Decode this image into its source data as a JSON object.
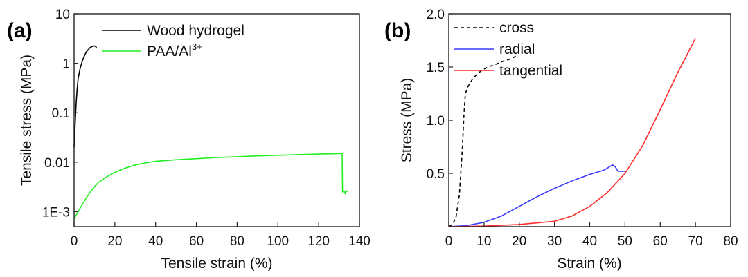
{
  "chart_data": [
    {
      "panel": "(a)",
      "type": "line",
      "xlabel": "Tensile strain (%)",
      "ylabel": "Tensile stress (MPa)",
      "xlim": [
        0,
        140
      ],
      "ylim": [
        0.0005,
        10
      ],
      "yscale": "log",
      "x_ticks": [
        0,
        20,
        40,
        60,
        80,
        100,
        120,
        140
      ],
      "y_ticks": [
        {
          "value": 10,
          "label": "10"
        },
        {
          "value": 1,
          "label": "1"
        },
        {
          "value": 0.1,
          "label": "0.1"
        },
        {
          "value": 0.01,
          "label": "0.01"
        },
        {
          "value": 0.001,
          "label": "1E-3"
        }
      ],
      "grid": false,
      "legend": "top-left",
      "series": [
        {
          "name": "Wood hydrogel",
          "color": "#000000",
          "points": [
            [
              0,
              0.02
            ],
            [
              0.5,
              0.06
            ],
            [
              1,
              0.15
            ],
            [
              1.5,
              0.3
            ],
            [
              2,
              0.5
            ],
            [
              3,
              0.8
            ],
            [
              4,
              1.1
            ],
            [
              5,
              1.4
            ],
            [
              6,
              1.7
            ],
            [
              7,
              1.9
            ],
            [
              8,
              2.1
            ],
            [
              9,
              2.2
            ],
            [
              10,
              2.25
            ],
            [
              10.8,
              2.15
            ],
            [
              11,
              2.0
            ]
          ]
        },
        {
          "name": "PAA/Al",
          "name_superscript": "3+",
          "color": "#22ee22",
          "points": [
            [
              0,
              0.0007
            ],
            [
              1,
              0.00085
            ],
            [
              2,
              0.001
            ],
            [
              4,
              0.0014
            ],
            [
              6,
              0.0019
            ],
            [
              8,
              0.0025
            ],
            [
              10,
              0.0032
            ],
            [
              12,
              0.0039
            ],
            [
              15,
              0.0048
            ],
            [
              20,
              0.0063
            ],
            [
              25,
              0.0076
            ],
            [
              30,
              0.0088
            ],
            [
              35,
              0.0097
            ],
            [
              40,
              0.0104
            ],
            [
              50,
              0.0112
            ],
            [
              60,
              0.0118
            ],
            [
              70,
              0.0124
            ],
            [
              80,
              0.0129
            ],
            [
              90,
              0.0134
            ],
            [
              100,
              0.0138
            ],
            [
              110,
              0.0142
            ],
            [
              120,
              0.0146
            ],
            [
              130,
              0.0149
            ],
            [
              131.5,
              0.015
            ],
            [
              131.7,
              0.0025
            ],
            [
              132.5,
              0.0026
            ],
            [
              133,
              0.0023
            ],
            [
              133.5,
              0.0027
            ],
            [
              134,
              0.0025
            ]
          ]
        }
      ]
    },
    {
      "panel": "(b)",
      "type": "line",
      "xlabel": "Strain (%)",
      "ylabel": "Stress (MPa)",
      "xlim": [
        0,
        80
      ],
      "ylim": [
        0,
        2.0
      ],
      "x_ticks": [
        0,
        10,
        20,
        30,
        40,
        50,
        60,
        70,
        80
      ],
      "y_ticks": [
        {
          "value": 0.5,
          "label": "0.5"
        },
        {
          "value": 1.0,
          "label": "1.0"
        },
        {
          "value": 1.5,
          "label": "1.5"
        },
        {
          "value": 2.0,
          "label": "2.0"
        }
      ],
      "grid": false,
      "legend": "top-left",
      "series": [
        {
          "name": "cross",
          "color": "#000000",
          "dash": "dashed",
          "points": [
            [
              0,
              0.0
            ],
            [
              1,
              0.02
            ],
            [
              2,
              0.08
            ],
            [
              3,
              0.3
            ],
            [
              3.8,
              0.7
            ],
            [
              4.3,
              1.05
            ],
            [
              4.7,
              1.25
            ],
            [
              5.5,
              1.32
            ],
            [
              7,
              1.4
            ],
            [
              9,
              1.46
            ],
            [
              11,
              1.5
            ],
            [
              13,
              1.52
            ],
            [
              15,
              1.55
            ],
            [
              17,
              1.57
            ],
            [
              19,
              1.6
            ]
          ]
        },
        {
          "name": "radial",
          "color": "#3a3aff",
          "points": [
            [
              0,
              0.0
            ],
            [
              5,
              0.01
            ],
            [
              10,
              0.04
            ],
            [
              15,
              0.1
            ],
            [
              20,
              0.19
            ],
            [
              25,
              0.28
            ],
            [
              30,
              0.36
            ],
            [
              35,
              0.43
            ],
            [
              40,
              0.49
            ],
            [
              44,
              0.53
            ],
            [
              46.5,
              0.58
            ],
            [
              47.3,
              0.56
            ],
            [
              48,
              0.52
            ],
            [
              50,
              0.52
            ]
          ]
        },
        {
          "name": "tangential",
          "color": "#ff2a2a",
          "points": [
            [
              0,
              0.0
            ],
            [
              10,
              0.005
            ],
            [
              20,
              0.02
            ],
            [
              30,
              0.05
            ],
            [
              35,
              0.1
            ],
            [
              40,
              0.19
            ],
            [
              45,
              0.32
            ],
            [
              50,
              0.5
            ],
            [
              55,
              0.76
            ],
            [
              60,
              1.1
            ],
            [
              65,
              1.45
            ],
            [
              68,
              1.64
            ],
            [
              70,
              1.77
            ]
          ]
        }
      ]
    }
  ]
}
